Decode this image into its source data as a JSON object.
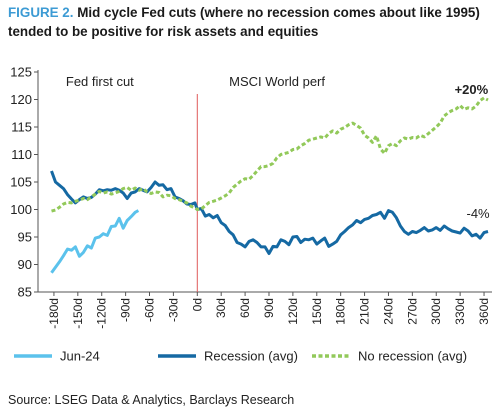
{
  "title": {
    "figure_label": "FIGURE 2.",
    "text": "Mid cycle Fed cuts (where no recession comes about like 1995) tended to be positive for risk assets and equities"
  },
  "source": "Source: LSEG Data & Analytics, Barclays Research",
  "colors": {
    "jun24": "#5bc2ec",
    "recession": "#1569a3",
    "no_recession": "#92c95a",
    "vline": "#e05a5a",
    "axis": "#555555"
  },
  "chart_data": {
    "type": "line",
    "xlabel": "",
    "ylabel": "",
    "xlim": [
      -200,
      370
    ],
    "ylim": [
      85,
      125
    ],
    "yticks": [
      85,
      90,
      95,
      100,
      105,
      110,
      115,
      120,
      125
    ],
    "xticks": [
      -180,
      -150,
      -120,
      -90,
      -60,
      -30,
      0,
      30,
      60,
      90,
      120,
      150,
      180,
      210,
      240,
      270,
      300,
      330,
      360
    ],
    "xtick_suffix": "d",
    "legend_position": "bottom",
    "grid": false,
    "annotations": [
      {
        "text": "Fed first cut",
        "x": -165,
        "y": 122.5
      },
      {
        "text": "MSCI World perf",
        "x": 40,
        "y": 122.5
      },
      {
        "text": "+20%",
        "x": 323,
        "y": 121,
        "bold": true
      },
      {
        "text": "-4%",
        "x": 338,
        "y": 98.5,
        "bold": false
      }
    ],
    "series": [
      {
        "name": "Jun-24",
        "x": [
          -183,
          -178,
          -173,
          -168,
          -163,
          -158,
          -153,
          -148,
          -143,
          -138,
          -133,
          -128,
          -123,
          -118,
          -113,
          -108,
          -103,
          -98,
          -93,
          -88,
          -83,
          -78,
          -74
        ],
        "y": [
          88.5,
          89.5,
          90.5,
          91.6,
          92.8,
          92.6,
          93.2,
          91.5,
          92.2,
          93.4,
          93.0,
          94.8,
          95.0,
          95.6,
          95.3,
          96.9,
          97.0,
          98.4,
          96.6,
          98.0,
          98.7,
          99.5,
          99.8
        ]
      },
      {
        "name": "Recession (avg)",
        "x": [
          -183,
          -178,
          -173,
          -168,
          -163,
          -158,
          -153,
          -148,
          -143,
          -138,
          -133,
          -128,
          -123,
          -118,
          -113,
          -108,
          -103,
          -98,
          -93,
          -88,
          -83,
          -78,
          -73,
          -68,
          -63,
          -58,
          -53,
          -48,
          -43,
          -38,
          -33,
          -28,
          -23,
          -18,
          -13,
          -8,
          -3,
          0,
          5,
          10,
          15,
          20,
          25,
          30,
          35,
          40,
          45,
          50,
          55,
          60,
          65,
          70,
          75,
          80,
          85,
          90,
          95,
          100,
          105,
          110,
          115,
          120,
          125,
          130,
          135,
          140,
          145,
          150,
          155,
          160,
          165,
          170,
          175,
          180,
          185,
          190,
          195,
          200,
          205,
          210,
          215,
          220,
          225,
          230,
          235,
          240,
          245,
          250,
          255,
          260,
          265,
          270,
          275,
          280,
          285,
          290,
          295,
          300,
          305,
          310,
          315,
          320,
          325,
          330,
          335,
          340,
          345,
          350,
          355,
          360,
          365
        ],
        "y": [
          107.0,
          105.0,
          104.4,
          103.8,
          102.7,
          101.9,
          101.2,
          101.8,
          102.3,
          102.0,
          102.2,
          102.8,
          103.6,
          103.4,
          103.6,
          103.5,
          103.8,
          103.5,
          103.0,
          102.0,
          103.0,
          103.2,
          103.8,
          103.5,
          103.2,
          104.0,
          105.0,
          104.4,
          104.5,
          103.6,
          103.8,
          102.3,
          102.0,
          101.6,
          101.0,
          100.9,
          101.2,
          100.0,
          100.2,
          98.8,
          99.1,
          98.5,
          98.9,
          97.6,
          97.1,
          96.0,
          95.4,
          94.0,
          93.7,
          93.2,
          94.2,
          94.5,
          94.0,
          93.2,
          93.2,
          92.0,
          93.3,
          93.2,
          94.5,
          94.2,
          93.6,
          95.0,
          95.1,
          94.0,
          94.6,
          94.5,
          94.8,
          93.7,
          94.3,
          94.8,
          93.3,
          93.7,
          94.2,
          95.4,
          96.0,
          96.7,
          97.2,
          98.0,
          97.6,
          98.2,
          98.4,
          98.9,
          99.1,
          99.5,
          98.4,
          99.8,
          99.5,
          98.5,
          97.0,
          96.0,
          95.5,
          96.0,
          95.8,
          96.2,
          96.7,
          96.1,
          96.3,
          96.7,
          96.2,
          97.0,
          96.5,
          96.1,
          95.9,
          95.7,
          96.6,
          96.1,
          95.2,
          95.5,
          94.8,
          95.8,
          96.0
        ]
      },
      {
        "name": "No recession (avg)",
        "x": [
          -183,
          -178,
          -173,
          -168,
          -163,
          -158,
          -153,
          -148,
          -143,
          -138,
          -133,
          -128,
          -123,
          -118,
          -113,
          -108,
          -103,
          -98,
          -93,
          -88,
          -83,
          -78,
          -73,
          -68,
          -63,
          -58,
          -53,
          -48,
          -43,
          -38,
          -33,
          -28,
          -23,
          -18,
          -13,
          -8,
          -3,
          0,
          5,
          10,
          15,
          20,
          25,
          30,
          35,
          40,
          45,
          50,
          55,
          60,
          65,
          70,
          75,
          80,
          85,
          90,
          95,
          100,
          105,
          110,
          115,
          120,
          125,
          130,
          135,
          140,
          145,
          150,
          155,
          160,
          165,
          170,
          175,
          180,
          185,
          190,
          195,
          200,
          205,
          210,
          215,
          220,
          225,
          230,
          235,
          240,
          245,
          250,
          255,
          260,
          265,
          270,
          275,
          280,
          285,
          290,
          295,
          300,
          305,
          310,
          315,
          320,
          325,
          330,
          335,
          340,
          345,
          350,
          355,
          360,
          365
        ],
        "y": [
          99.7,
          99.9,
          100.4,
          101.0,
          101.3,
          101.2,
          101.5,
          101.7,
          102.0,
          101.8,
          102.3,
          102.8,
          103.3,
          103.0,
          103.2,
          102.8,
          103.0,
          103.3,
          103.8,
          104.0,
          103.5,
          103.9,
          103.5,
          103.8,
          103.2,
          102.9,
          103.2,
          103.1,
          102.3,
          102.6,
          102.5,
          102.0,
          101.8,
          101.5,
          101.2,
          100.6,
          100.3,
          100.0,
          100.1,
          100.7,
          101.3,
          101.5,
          101.7,
          102.1,
          102.5,
          103.0,
          104.0,
          104.6,
          105.2,
          105.6,
          105.5,
          106.2,
          107.0,
          107.8,
          107.8,
          108.0,
          108.4,
          109.4,
          110.0,
          110.2,
          110.4,
          110.9,
          111.0,
          111.6,
          112.0,
          112.6,
          112.8,
          113.0,
          113.2,
          113.0,
          113.8,
          114.3,
          113.9,
          114.6,
          114.9,
          115.4,
          115.7,
          115.3,
          114.8,
          113.5,
          113.0,
          112.2,
          113.4,
          111.0,
          110.2,
          111.6,
          112.0,
          111.6,
          112.5,
          113.0,
          112.8,
          113.1,
          113.0,
          113.5,
          113.2,
          113.8,
          114.4,
          115.0,
          115.7,
          117.0,
          117.6,
          118.0,
          118.3,
          118.9,
          118.2,
          118.5,
          118.3,
          118.8,
          119.8,
          120.3,
          119.9
        ]
      }
    ]
  }
}
